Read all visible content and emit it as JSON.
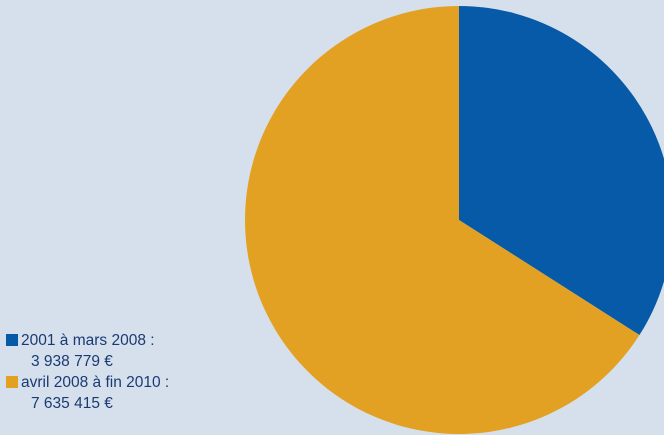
{
  "chart_data": {
    "type": "pie",
    "categories": [
      "2001 à mars 2008",
      "avril 2008 à fin 2010"
    ],
    "values": [
      3938779,
      7635415
    ],
    "value_labels": [
      "3 938 779 €",
      "7 635 415 €"
    ],
    "colors": [
      "#065aa8",
      "#e3a124"
    ],
    "start_angle_deg": 0,
    "direction": "clockwise",
    "legend_position": "bottom-left"
  },
  "legend": {
    "items": [
      {
        "label": "2001 à mars 2008 :",
        "value": "3 938 779 €",
        "color": "#065aa8"
      },
      {
        "label": "avril 2008 à fin 2010 :",
        "value": "7 635 415 €",
        "color": "#e3a124"
      }
    ]
  }
}
